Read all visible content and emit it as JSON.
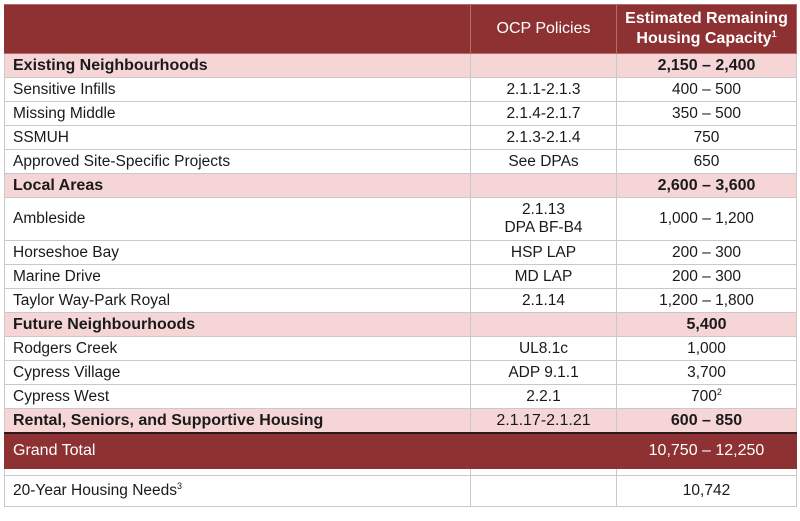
{
  "header": {
    "col1": "",
    "col2": "OCP Policies",
    "col3_line1": "Estimated Remaining",
    "col3_line2": "Housing Capacity",
    "col3_sup": "1"
  },
  "sections": [
    {
      "name": "Existing Neighbourhoods",
      "policy": "",
      "capacity": "2,150 – 2,400",
      "rows": [
        {
          "name": "Sensitive Infills",
          "policy": "2.1.1-2.1.3",
          "capacity": "400 – 500"
        },
        {
          "name": "Missing Middle",
          "policy": "2.1.4-2.1.7",
          "capacity": "350 – 500"
        },
        {
          "name": "SSMUH",
          "policy": "2.1.3-2.1.4",
          "capacity": "750"
        },
        {
          "name": "Approved Site-Specific Projects",
          "policy": "See DPAs",
          "capacity": "650"
        }
      ]
    },
    {
      "name": "Local Areas",
      "policy": "",
      "capacity": "2,600 – 3,600",
      "rows": [
        {
          "name": "Ambleside",
          "policy_line1": "2.1.13",
          "policy_line2": "DPA BF-B4",
          "capacity": "1,000 – 1,200"
        },
        {
          "name": "Horseshoe Bay",
          "policy": "HSP LAP",
          "capacity": "200 – 300"
        },
        {
          "name": "Marine Drive",
          "policy": "MD LAP",
          "capacity": "200 – 300"
        },
        {
          "name": "Taylor Way-Park Royal",
          "policy": "2.1.14",
          "capacity": "1,200 – 1,800"
        }
      ]
    },
    {
      "name": "Future Neighbourhoods",
      "policy": "",
      "capacity": "5,400",
      "rows": [
        {
          "name": "Rodgers Creek",
          "policy": "UL8.1c",
          "capacity": "1,000"
        },
        {
          "name": "Cypress Village",
          "policy": "ADP 9.1.1",
          "capacity": "3,700"
        },
        {
          "name": "Cypress West",
          "policy": "2.2.1",
          "capacity": "700",
          "capacity_sup": "2"
        }
      ]
    },
    {
      "name": "Rental, Seniors, and Supportive Housing",
      "policy": "2.1.17-2.1.21",
      "capacity": "600 – 850",
      "rows": []
    }
  ],
  "grand_total": {
    "name": "Grand Total",
    "policy": "",
    "capacity": "10,750 – 12,250"
  },
  "needs": {
    "name": "20-Year Housing Needs",
    "name_sup": "3",
    "policy": "",
    "capacity": "10,742"
  },
  "colors": {
    "header_bg": "#8e3132",
    "section_bg": "#f5d5d5"
  }
}
